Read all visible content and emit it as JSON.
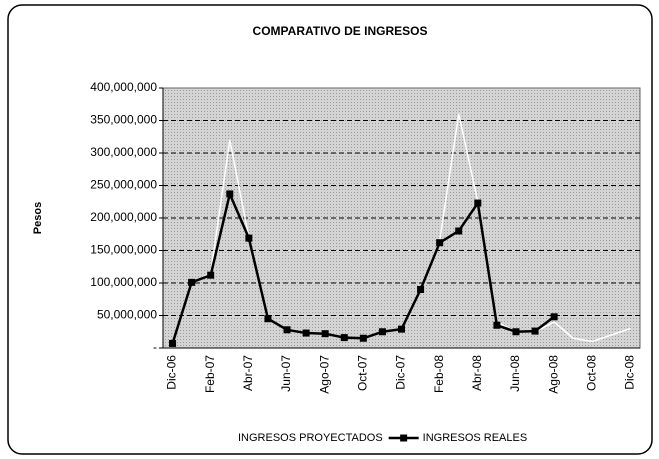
{
  "chart_data": {
    "type": "line",
    "title": "COMPARATIVO DE INGRESOS",
    "y_label": "Pesos",
    "categories": [
      "Dic-06",
      null,
      "Feb-07",
      null,
      "Abr-07",
      null,
      "Jun-07",
      null,
      "Ago-07",
      null,
      "Oct-07",
      null,
      "Dic-07",
      null,
      "Feb-08",
      null,
      "Abr-08",
      null,
      "Jun-08",
      null,
      "Ago-08",
      null,
      "Oct-08",
      null,
      "Dic-08"
    ],
    "series": [
      {
        "name": "INGRESOS PROYECTADOS",
        "color": "#ffffff",
        "marker": false,
        "values": [
          5000000,
          100000000,
          115000000,
          320000000,
          170000000,
          45000000,
          28000000,
          23000000,
          22000000,
          16000000,
          15000000,
          25000000,
          30000000,
          90000000,
          165000000,
          360000000,
          225000000,
          40000000,
          25000000,
          25000000,
          40000000,
          15000000,
          10000000,
          20000000,
          30000000
        ]
      },
      {
        "name": "INGRESOS REALES",
        "color": "#000000",
        "marker": true,
        "values": [
          7000000,
          101000000,
          112000000,
          237000000,
          169000000,
          45000000,
          28000000,
          23000000,
          22000000,
          16000000,
          15000000,
          25000000,
          29000000,
          90000000,
          162000000,
          180000000,
          223000000,
          35000000,
          25000000,
          26000000,
          48000000,
          null,
          null,
          null,
          null
        ]
      }
    ],
    "ylim": [
      0,
      400000000
    ],
    "yticks": [
      {
        "value": 0,
        "label": "-"
      },
      {
        "value": 50000000,
        "label": "50,000,000"
      },
      {
        "value": 100000000,
        "label": "100,000,000"
      },
      {
        "value": 150000000,
        "label": "150,000,000"
      },
      {
        "value": 200000000,
        "label": "200,000,000"
      },
      {
        "value": 250000000,
        "label": "250,000,000"
      },
      {
        "value": 300000000,
        "label": "300,000,000"
      },
      {
        "value": 350000000,
        "label": "350,000,000"
      },
      {
        "value": 400000000,
        "label": "400,000,000"
      }
    ],
    "grid": true,
    "legend": "bottom"
  }
}
